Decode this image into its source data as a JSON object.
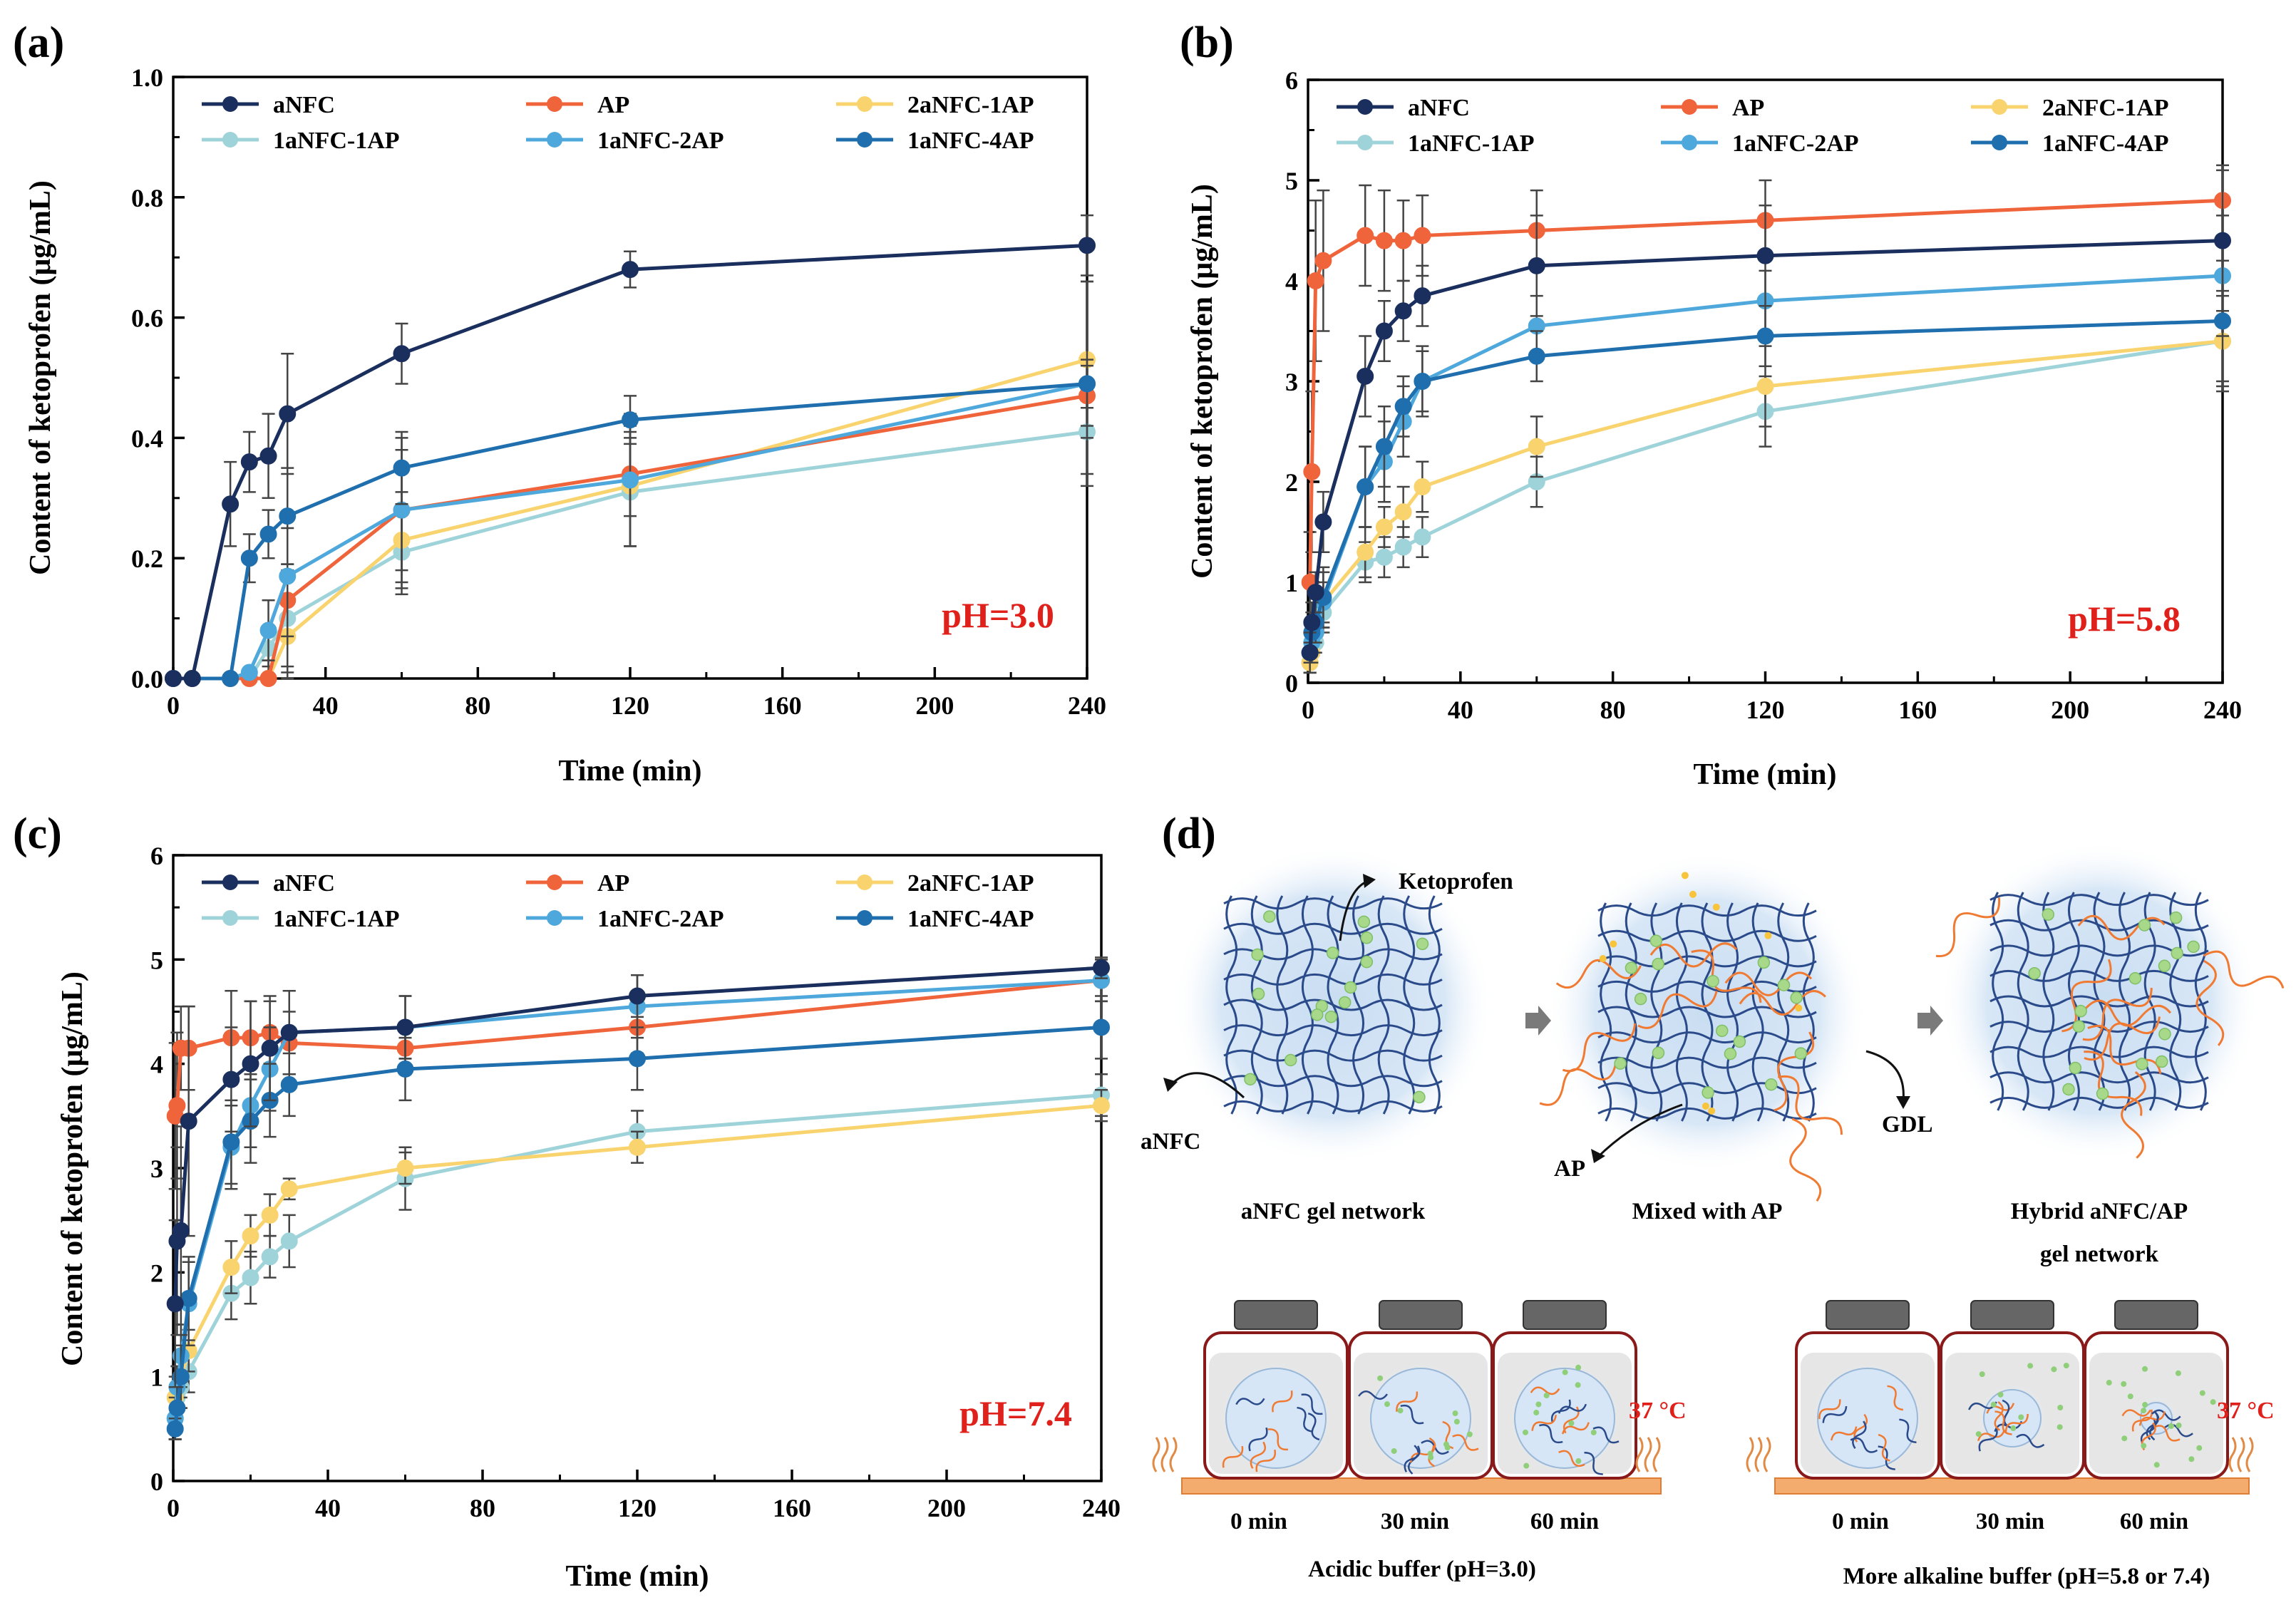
{
  "panels": [
    {
      "id": "a",
      "label": "(a)",
      "ph": "pH=3.0",
      "ylim": [
        0,
        1.0
      ],
      "yticks": [
        "0.0",
        "0.2",
        "0.4",
        "0.6",
        "0.8",
        "1.0"
      ],
      "yvals": [
        0,
        0.2,
        0.4,
        0.6,
        0.8,
        1.0
      ]
    },
    {
      "id": "b",
      "label": "(b)",
      "ph": "pH=5.8",
      "ylim": [
        0,
        6
      ],
      "yticks": [
        "0",
        "1",
        "2",
        "3",
        "4",
        "5",
        "6"
      ],
      "yvals": [
        0,
        1,
        2,
        3,
        4,
        5,
        6
      ]
    },
    {
      "id": "c",
      "label": "(c)",
      "ph": "pH=7.4",
      "ylim": [
        0,
        6
      ],
      "yticks": [
        "0",
        "1",
        "2",
        "3",
        "4",
        "5",
        "6"
      ],
      "yvals": [
        0,
        1,
        2,
        3,
        4,
        5,
        6
      ]
    }
  ],
  "axes": {
    "xlabel": "Time (min)",
    "ylabel": "Content of ketoprofen (μg/mL)",
    "xticks": [
      "0",
      "40",
      "80",
      "120",
      "160",
      "200",
      "240"
    ],
    "xvals": [
      0,
      40,
      80,
      120,
      160,
      200,
      240
    ]
  },
  "series_style": [
    {
      "name": "aNFC",
      "color": "#1a2f5e"
    },
    {
      "name": "AP",
      "color": "#f0643c"
    },
    {
      "name": "2aNFC-1AP",
      "color": "#f9d46e"
    },
    {
      "name": "1aNFC-1AP",
      "color": "#9fd3da"
    },
    {
      "name": "1aNFC-2AP",
      "color": "#4fa8dc"
    },
    {
      "name": "1aNFC-4AP",
      "color": "#1f6fae"
    }
  ],
  "chart_data": [
    {
      "type": "line",
      "title": "(a)",
      "xlabel": "Time (min)",
      "ylabel": "Content of ketoprofen (μg/mL)",
      "xlim": [
        0,
        240
      ],
      "ylim": [
        0,
        1.0
      ],
      "annotation": "pH=3.0",
      "x": [
        0,
        5,
        15,
        20,
        25,
        30,
        60,
        120,
        240
      ],
      "series": [
        {
          "name": "aNFC",
          "values": [
            0,
            0,
            0.29,
            0.36,
            0.37,
            0.44,
            0.54,
            0.68,
            0.72
          ],
          "err": [
            0,
            0,
            0.07,
            0.05,
            0.07,
            0.1,
            0.05,
            0.03,
            0.05
          ]
        },
        {
          "name": "AP",
          "values": [
            0,
            0,
            0,
            0,
            0,
            0.13,
            0.28,
            0.34,
            0.47
          ],
          "err": [
            0,
            0,
            0,
            0,
            0.03,
            0.12,
            0.1,
            0.07,
            0.05
          ]
        },
        {
          "name": "2aNFC-1AP",
          "values": [
            0,
            0,
            0,
            0,
            0,
            0.07,
            0.23,
            0.32,
            0.53
          ],
          "err": [
            0,
            0,
            0,
            0,
            0,
            0.12,
            0.08,
            0.1,
            0.13
          ]
        },
        {
          "name": "1aNFC-1AP",
          "values": [
            0,
            0,
            0,
            0,
            0.05,
            0.1,
            0.21,
            0.31,
            0.41
          ],
          "err": [
            0,
            0,
            0,
            0,
            0.03,
            0.08,
            0.07,
            0.09,
            0.07
          ]
        },
        {
          "name": "1aNFC-2AP",
          "values": [
            0,
            0,
            0,
            0.01,
            0.08,
            0.17,
            0.28,
            0.33,
            0.49
          ],
          "err": [
            0,
            0,
            0,
            0,
            0.05,
            0.1,
            0.12,
            0.11,
            0.17
          ]
        },
        {
          "name": "1aNFC-4AP",
          "values": [
            0,
            0,
            0,
            0.2,
            0.24,
            0.27,
            0.35,
            0.43,
            0.49
          ],
          "err": [
            0,
            0,
            0,
            0.04,
            0.04,
            0.08,
            0.06,
            0.04,
            0.04
          ]
        }
      ]
    },
    {
      "type": "line",
      "title": "(b)",
      "xlabel": "Time (min)",
      "ylabel": "Content of ketoprofen (μg/mL)",
      "xlim": [
        0,
        240
      ],
      "ylim": [
        0,
        6
      ],
      "annotation": "pH=5.8",
      "x": [
        0.5,
        1,
        2,
        4,
        15,
        20,
        25,
        30,
        60,
        120,
        240
      ],
      "series": [
        {
          "name": "aNFC",
          "values": [
            0.3,
            0.6,
            0.9,
            1.6,
            3.05,
            3.5,
            3.7,
            3.85,
            4.15,
            4.25,
            4.4
          ],
          "err": [
            0.2,
            0.2,
            0.2,
            0.3,
            0.4,
            0.3,
            0.3,
            0.3,
            0.5,
            0.5,
            0.7
          ]
        },
        {
          "name": "AP",
          "values": [
            1.0,
            2.1,
            4.0,
            4.2,
            4.45,
            4.4,
            4.4,
            4.45,
            4.5,
            4.6,
            4.8
          ],
          "err": [
            0.5,
            0.8,
            0.8,
            0.7,
            0.5,
            0.5,
            0.4,
            0.4,
            0.4,
            0.4,
            0.35
          ]
        },
        {
          "name": "2aNFC-1AP",
          "values": [
            0.2,
            0.3,
            0.5,
            0.8,
            1.3,
            1.55,
            1.7,
            1.95,
            2.35,
            2.95,
            3.4
          ],
          "err": [
            0.1,
            0.1,
            0.1,
            0.2,
            0.25,
            0.2,
            0.25,
            0.25,
            0.3,
            0.4,
            0.5
          ]
        },
        {
          "name": "1aNFC-1AP",
          "values": [
            0.2,
            0.3,
            0.4,
            0.7,
            1.2,
            1.25,
            1.35,
            1.45,
            2.0,
            2.7,
            3.4
          ],
          "err": [
            0.1,
            0.1,
            0.1,
            0.15,
            0.2,
            0.2,
            0.2,
            0.2,
            0.25,
            0.35,
            0.45
          ]
        },
        {
          "name": "1aNFC-2AP",
          "values": [
            0.3,
            0.4,
            0.5,
            0.8,
            1.95,
            2.2,
            2.6,
            3.0,
            3.55,
            3.8,
            4.05
          ],
          "err": [
            0.1,
            0.2,
            0.2,
            0.3,
            0.4,
            0.4,
            0.35,
            0.35,
            0.3,
            0.3,
            0.6
          ]
        },
        {
          "name": "1aNFC-4AP",
          "values": [
            0.3,
            0.5,
            0.6,
            0.85,
            1.95,
            2.35,
            2.75,
            3.0,
            3.25,
            3.45,
            3.6
          ],
          "err": [
            0.1,
            0.2,
            0.2,
            0.3,
            0.4,
            0.4,
            0.3,
            0.3,
            0.25,
            0.3,
            0.6
          ]
        }
      ]
    },
    {
      "type": "line",
      "title": "(c)",
      "xlabel": "Time (min)",
      "ylabel": "Content of ketoprofen (μg/mL)",
      "xlim": [
        0,
        240
      ],
      "ylim": [
        0,
        6
      ],
      "annotation": "pH=7.4",
      "x": [
        0.5,
        1,
        2,
        4,
        15,
        20,
        25,
        30,
        60,
        120,
        240
      ],
      "series": [
        {
          "name": "aNFC",
          "values": [
            1.7,
            2.3,
            2.4,
            3.45,
            3.85,
            4.0,
            4.15,
            4.3,
            4.35,
            4.65,
            4.92
          ],
          "err": [
            0.8,
            0.9,
            1.0,
            1.1,
            0.5,
            0.6,
            0.5,
            0.4,
            0.3,
            0.2,
            0.1
          ]
        },
        {
          "name": "AP",
          "values": [
            3.5,
            3.6,
            4.15,
            4.15,
            4.25,
            4.25,
            4.3,
            4.2,
            4.15,
            4.35,
            4.8
          ],
          "err": [
            0.7,
            0.7,
            0.4,
            0.4,
            0.45,
            0.35,
            0.3,
            0.3,
            0.25,
            0.25,
            0.2
          ]
        },
        {
          "name": "2aNFC-1AP",
          "values": [
            0.8,
            0.9,
            1.0,
            1.25,
            2.05,
            2.35,
            2.55,
            2.8,
            3.0,
            3.2,
            3.6
          ],
          "err": [
            0.2,
            0.2,
            0.2,
            0.2,
            0.25,
            0.2,
            0.2,
            0.1,
            0.15,
            0.15,
            0.15
          ]
        },
        {
          "name": "1aNFC-1AP",
          "values": [
            0.6,
            0.8,
            0.9,
            1.05,
            1.8,
            1.95,
            2.15,
            2.3,
            2.9,
            3.35,
            3.7
          ],
          "err": [
            0.2,
            0.2,
            0.2,
            0.2,
            0.25,
            0.25,
            0.2,
            0.25,
            0.3,
            0.2,
            0.2
          ]
        },
        {
          "name": "1aNFC-2AP",
          "values": [
            0.6,
            0.9,
            1.2,
            1.7,
            3.2,
            3.6,
            3.95,
            4.3,
            4.35,
            4.55,
            4.8
          ],
          "err": [
            0.2,
            0.2,
            0.3,
            0.4,
            0.4,
            0.4,
            0.4,
            0.4,
            0.3,
            0.3,
            0.2
          ]
        },
        {
          "name": "1aNFC-4AP",
          "values": [
            0.5,
            0.7,
            1.0,
            1.75,
            3.25,
            3.45,
            3.65,
            3.8,
            3.95,
            4.05,
            4.35
          ],
          "err": [
            0.1,
            0.2,
            0.3,
            0.4,
            0.4,
            0.4,
            0.35,
            0.3,
            0.3,
            0.3,
            0.3
          ]
        }
      ]
    }
  ],
  "diagram": {
    "label": "(d)",
    "ketoprofen": "Ketoprofen",
    "anfc": "aNFC",
    "ap": "AP",
    "gdl": "GDL",
    "cap1": "aNFC gel network",
    "cap2": "Mixed with AP",
    "cap3a": "Hybrid aNFC/AP",
    "cap3b": "gel network",
    "temp": "37 °C",
    "t0": "0 min",
    "t30": "30 min",
    "t60": "60 min",
    "buffer_acid": "Acidic buffer (pH=3.0)",
    "buffer_alk": "More alkaline buffer (pH=5.8 or 7.4)"
  }
}
